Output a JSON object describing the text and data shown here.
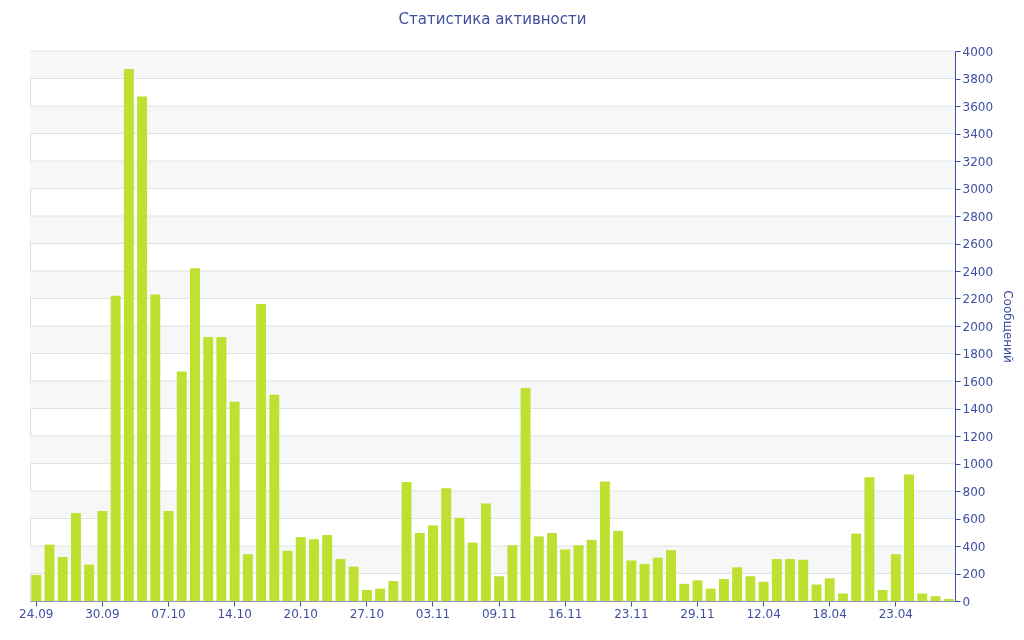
{
  "chart_data": {
    "type": "bar",
    "title": "Статистика активности",
    "ylabel": "Сообщений",
    "categories": [
      "24.09",
      null,
      null,
      null,
      null,
      "30.09",
      null,
      null,
      null,
      null,
      "07.10",
      null,
      null,
      null,
      null,
      "14.10",
      null,
      null,
      null,
      null,
      "20.10",
      null,
      null,
      null,
      null,
      "27.10",
      null,
      null,
      null,
      null,
      "03.11",
      null,
      null,
      null,
      null,
      "09.11",
      null,
      null,
      null,
      null,
      "16.11",
      null,
      null,
      null,
      null,
      "23.11",
      null,
      null,
      null,
      null,
      "29.11",
      null,
      null,
      null,
      null,
      "12.04",
      null,
      null,
      null,
      null,
      "18.04",
      null,
      null,
      null,
      null,
      "23.04",
      null,
      null,
      null,
      null
    ],
    "values": [
      190,
      410,
      320,
      640,
      265,
      655,
      2220,
      3870,
      3670,
      2230,
      655,
      1670,
      2420,
      1920,
      1920,
      1450,
      340,
      2160,
      1500,
      365,
      465,
      450,
      480,
      305,
      250,
      80,
      90,
      145,
      865,
      495,
      550,
      820,
      605,
      425,
      710,
      180,
      405,
      1550,
      470,
      495,
      375,
      405,
      445,
      870,
      510,
      295,
      270,
      315,
      370,
      125,
      150,
      90,
      160,
      245,
      180,
      140,
      305,
      305,
      300,
      120,
      165,
      55,
      490,
      900,
      80,
      340,
      920,
      55,
      35,
      15
    ],
    "color": "#bde031",
    "ylim": [
      0,
      4000
    ],
    "yticks": [
      0,
      200,
      400,
      600,
      800,
      1000,
      1200,
      1400,
      1600,
      1800,
      2000,
      2200,
      2400,
      2600,
      2800,
      3000,
      3200,
      3400,
      3600,
      3800,
      4000
    ],
    "grid": "y"
  }
}
